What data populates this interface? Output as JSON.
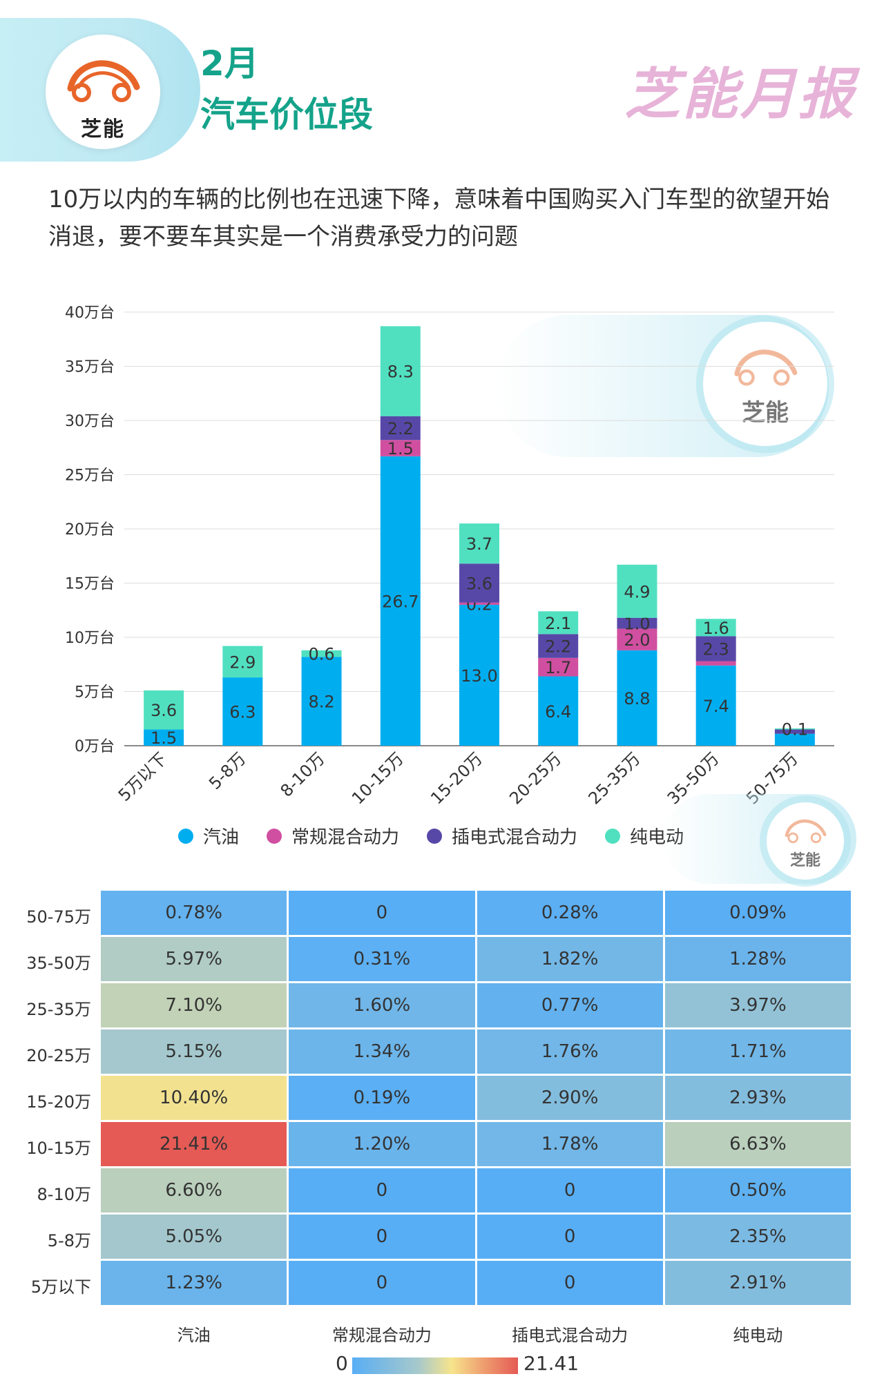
{
  "header": {
    "logo_text": "芝能",
    "month": "2月",
    "title": "汽车价位段",
    "brand": "芝能月报"
  },
  "description": "10万以内的车辆的比例也在迅速下降，意味着中国购买入门车型的欲望开始消退，要不要车其实是一个消费承受力的问题",
  "watermark_text": "芝能",
  "chart_data": [
    {
      "type": "bar",
      "stacked": true,
      "categories": [
        "5万以下",
        "5-8万",
        "8-10万",
        "10-15万",
        "15-20万",
        "20-25万",
        "25-35万",
        "35-50万",
        "50-75万"
      ],
      "yticks": [
        "0万台",
        "5万台",
        "10万台",
        "15万台",
        "20万台",
        "25万台",
        "30万台",
        "35万台",
        "40万台"
      ],
      "ylim": [
        0,
        40
      ],
      "grid": true,
      "legend_position": "bottom",
      "series": [
        {
          "name": "汽油",
          "color": "#00aeef",
          "values": [
            1.5,
            6.3,
            8.2,
            26.7,
            13.0,
            6.4,
            8.8,
            7.4,
            1.1
          ],
          "labels": [
            "1.5",
            "6.3",
            "8.2",
            "26.7",
            "13.0",
            "6.4",
            "8.8",
            "7.4",
            ""
          ]
        },
        {
          "name": "常规混合动力",
          "color": "#d04fa0",
          "values": [
            0,
            0,
            0,
            1.5,
            0.2,
            1.7,
            2.0,
            0.4,
            0
          ],
          "labels": [
            "",
            "",
            "",
            "1.5",
            "0.2",
            "1.7",
            "2.0",
            "",
            ""
          ]
        },
        {
          "name": "插电式混合动力",
          "color": "#5748a8",
          "values": [
            0,
            0,
            0,
            2.2,
            3.6,
            2.2,
            1.0,
            2.3,
            0.4
          ],
          "labels": [
            "",
            "",
            "",
            "2.2",
            "3.6",
            "2.2",
            "1.0",
            "2.3",
            ""
          ]
        },
        {
          "name": "纯电动",
          "color": "#50e0c0",
          "values": [
            3.6,
            2.9,
            0.6,
            8.3,
            3.7,
            2.1,
            4.9,
            1.6,
            0.1
          ],
          "labels": [
            "3.6",
            "2.9",
            "0.6",
            "8.3",
            "3.7",
            "2.1",
            "4.9",
            "1.6",
            "0.1"
          ]
        }
      ]
    },
    {
      "type": "heatmap",
      "columns": [
        "汽油",
        "常规混合动力",
        "插电式混合动力",
        "纯电动"
      ],
      "rows": [
        "50-75万",
        "35-50万",
        "25-35万",
        "20-25万",
        "15-20万",
        "10-15万",
        "8-10万",
        "5-8万",
        "5万以下"
      ],
      "values": [
        [
          0.78,
          0,
          0.28,
          0.09
        ],
        [
          5.97,
          0.31,
          1.82,
          1.28
        ],
        [
          7.1,
          1.6,
          0.77,
          3.97
        ],
        [
          5.15,
          1.34,
          1.76,
          1.71
        ],
        [
          10.4,
          0.19,
          2.9,
          2.93
        ],
        [
          21.41,
          1.2,
          1.78,
          6.63
        ],
        [
          6.6,
          0,
          0,
          0.5
        ],
        [
          5.05,
          0,
          0,
          2.35
        ],
        [
          1.23,
          0,
          0,
          2.91
        ]
      ],
      "labels": [
        [
          "0.78%",
          "0",
          "0.28%",
          "0.09%"
        ],
        [
          "5.97%",
          "0.31%",
          "1.82%",
          "1.28%"
        ],
        [
          "7.10%",
          "1.60%",
          "0.77%",
          "3.97%"
        ],
        [
          "5.15%",
          "1.34%",
          "1.76%",
          "1.71%"
        ],
        [
          "10.40%",
          "0.19%",
          "2.90%",
          "2.93%"
        ],
        [
          "21.41%",
          "1.20%",
          "1.78%",
          "6.63%"
        ],
        [
          "6.60%",
          "0",
          "0",
          "0.50%"
        ],
        [
          "5.05%",
          "0",
          "0",
          "2.35%"
        ],
        [
          "1.23%",
          "0",
          "0",
          "2.91%"
        ]
      ],
      "scale_min": "0",
      "scale_max": "21.41",
      "colors": [
        "#58aef5",
        "#a7c9cb",
        "#f7e48c",
        "#ee9b6e",
        "#e55a55"
      ]
    }
  ]
}
